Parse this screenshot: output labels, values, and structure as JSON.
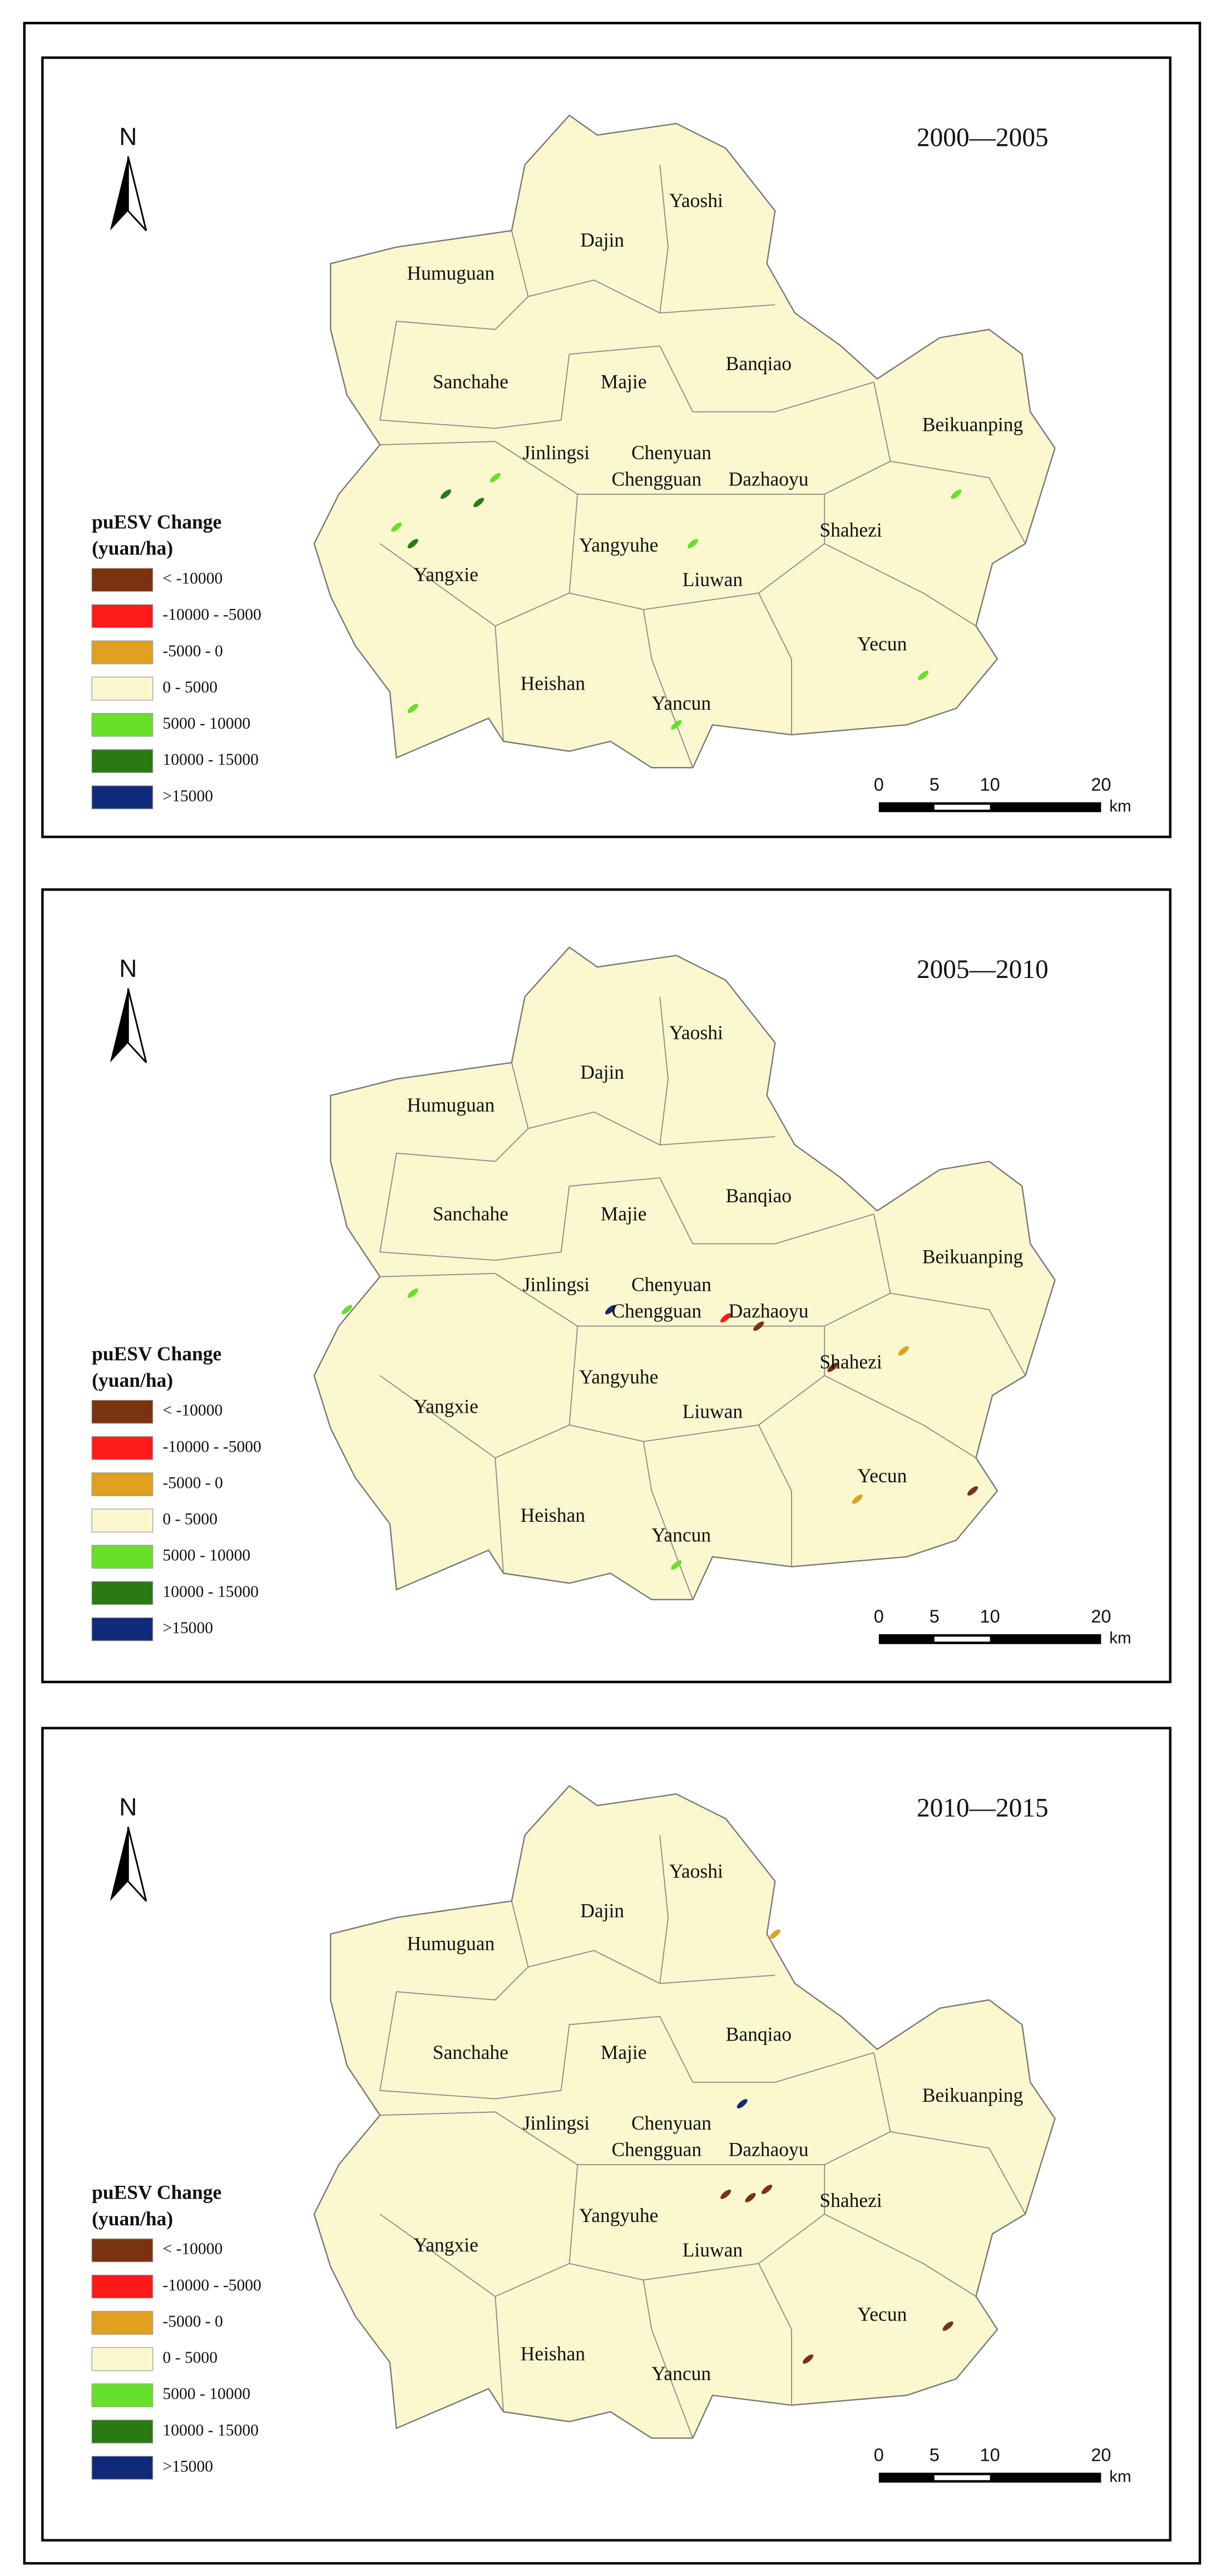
{
  "panels": [
    {
      "title": "2000—2005",
      "north": "N",
      "legend": {
        "title": [
          "puESV Change",
          "(yuan/ha)"
        ],
        "items": [
          {
            "label": "< -10000",
            "color": "#7a3210"
          },
          {
            "label": "-10000 - -5000",
            "color": "#ff1a1a"
          },
          {
            "label": "-5000 - 0",
            "color": "#e0a020"
          },
          {
            "label": "0 - 5000",
            "color": "#fbf8cf"
          },
          {
            "label": "5000 - 10000",
            "color": "#66e02a"
          },
          {
            "label": "10000 - 15000",
            "color": "#2a7a14"
          },
          {
            "label": ">15000",
            "color": "#102a7a"
          }
        ]
      },
      "districts": [
        "Yaoshi",
        "Dajin",
        "Humuguan",
        "Banqiao",
        "Sanchahe",
        "Majie",
        "Beikuanping",
        "Jinlingsi",
        "Chenyuan",
        "Chengguan",
        "Dazhaoyu",
        "Shahezi",
        "Yangyuhe",
        "Yangxie",
        "Liuwan",
        "Yecun",
        "Heishan",
        "Yancun"
      ],
      "scale_bar": {
        "labels": [
          "0",
          "5",
          "10",
          "20"
        ],
        "unit": "km"
      }
    },
    {
      "title": "2005—2010",
      "north": "N",
      "legend": {
        "title": [
          "puESV Change",
          "(yuan/ha)"
        ],
        "items": [
          {
            "label": "< -10000",
            "color": "#7a3210"
          },
          {
            "label": "-10000 - -5000",
            "color": "#ff1a1a"
          },
          {
            "label": "-5000 - 0",
            "color": "#e0a020"
          },
          {
            "label": "0 - 5000",
            "color": "#fbf8cf"
          },
          {
            "label": "5000 - 10000",
            "color": "#66e02a"
          },
          {
            "label": "10000 - 15000",
            "color": "#2a7a14"
          },
          {
            "label": ">15000",
            "color": "#102a7a"
          }
        ]
      },
      "districts": [
        "Yaoshi",
        "Dajin",
        "Humuguan",
        "Banqiao",
        "Sanchahe",
        "Majie",
        "Beikuanping",
        "Jinlingsi",
        "Chenyuan",
        "Chengguan",
        "Dazhaoyu",
        "Shahezi",
        "Yangyuhe",
        "Yangxie",
        "Liuwan",
        "Yecun",
        "Heishan",
        "Yancun"
      ],
      "scale_bar": {
        "labels": [
          "0",
          "5",
          "10",
          "20"
        ],
        "unit": "km"
      }
    },
    {
      "title": "2010—2015",
      "north": "N",
      "legend": {
        "title": [
          "puESV Change",
          "(yuan/ha)"
        ],
        "items": [
          {
            "label": "< -10000",
            "color": "#7a3210"
          },
          {
            "label": "-10000 - -5000",
            "color": "#ff1a1a"
          },
          {
            "label": "-5000 - 0",
            "color": "#e0a020"
          },
          {
            "label": "0 - 5000",
            "color": "#fbf8cf"
          },
          {
            "label": "5000 - 10000",
            "color": "#66e02a"
          },
          {
            "label": "10000 - 15000",
            "color": "#2a7a14"
          },
          {
            "label": ">15000",
            "color": "#102a7a"
          }
        ]
      },
      "districts": [
        "Yaoshi",
        "Dajin",
        "Humuguan",
        "Banqiao",
        "Sanchahe",
        "Majie",
        "Beikuanping",
        "Jinlingsi",
        "Chenyuan",
        "Chengguan",
        "Dazhaoyu",
        "Shahezi",
        "Yangyuhe",
        "Yangxie",
        "Liuwan",
        "Yecun",
        "Heishan",
        "Yancun"
      ],
      "scale_bar": {
        "labels": [
          "0",
          "5",
          "10",
          "20"
        ],
        "unit": "km"
      }
    }
  ]
}
